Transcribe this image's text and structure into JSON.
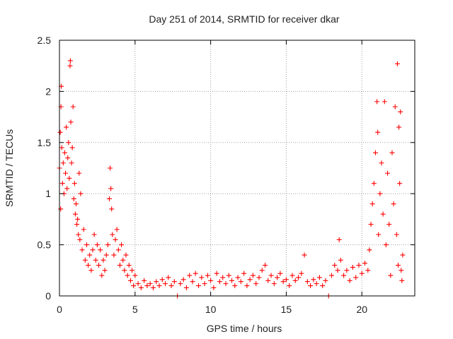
{
  "chart_data": {
    "type": "scatter",
    "title": "Day 251 of 2014, SRMTID for receiver dkar",
    "xlabel": "GPS time / hours",
    "ylabel": "SRMTID / TECUs",
    "xlim": [
      0,
      23.5
    ],
    "ylim": [
      0,
      2.5
    ],
    "x_ticks": [
      0,
      5,
      10,
      15,
      20
    ],
    "x_tick_labels": [
      "0",
      "5",
      "10",
      "15",
      "20"
    ],
    "y_ticks": [
      0,
      0.5,
      1,
      1.5,
      2,
      2.5
    ],
    "y_tick_labels": [
      "0",
      "0.5",
      "1",
      "1.5",
      "2",
      "2.5"
    ],
    "grid": true,
    "marker": "+",
    "series": [
      {
        "name": "SRMTID",
        "color": "#ff0000",
        "points": [
          [
            0.0,
            1.25
          ],
          [
            0.05,
            1.6
          ],
          [
            0.08,
            0.85
          ],
          [
            0.1,
            1.85
          ],
          [
            0.12,
            2.05
          ],
          [
            0.15,
            1.45
          ],
          [
            0.2,
            1.1
          ],
          [
            0.25,
            1.3
          ],
          [
            0.3,
            1.0
          ],
          [
            0.35,
            1.4
          ],
          [
            0.4,
            1.2
          ],
          [
            0.45,
            1.65
          ],
          [
            0.5,
            1.05
          ],
          [
            0.55,
            1.35
          ],
          [
            0.6,
            1.5
          ],
          [
            0.65,
            1.15
          ],
          [
            0.7,
            2.25
          ],
          [
            0.72,
            2.3
          ],
          [
            0.75,
            1.7
          ],
          [
            0.8,
            1.3
          ],
          [
            0.85,
            1.45
          ],
          [
            0.9,
            1.85
          ],
          [
            0.95,
            0.95
          ],
          [
            1.0,
            1.1
          ],
          [
            1.05,
            0.8
          ],
          [
            1.1,
            0.9
          ],
          [
            1.15,
            0.7
          ],
          [
            1.2,
            0.75
          ],
          [
            1.25,
            0.6
          ],
          [
            1.3,
            1.2
          ],
          [
            1.35,
            0.55
          ],
          [
            1.4,
            1.0
          ],
          [
            1.5,
            0.45
          ],
          [
            1.6,
            0.65
          ],
          [
            1.7,
            0.35
          ],
          [
            1.8,
            0.5
          ],
          [
            1.9,
            0.3
          ],
          [
            2.0,
            0.4
          ],
          [
            2.1,
            0.25
          ],
          [
            2.2,
            0.45
          ],
          [
            2.3,
            0.6
          ],
          [
            2.4,
            0.35
          ],
          [
            2.5,
            0.5
          ],
          [
            2.6,
            0.3
          ],
          [
            2.7,
            0.45
          ],
          [
            2.8,
            0.2
          ],
          [
            2.9,
            0.35
          ],
          [
            3.0,
            0.25
          ],
          [
            3.1,
            0.4
          ],
          [
            3.2,
            0.5
          ],
          [
            3.3,
            0.95
          ],
          [
            3.35,
            1.25
          ],
          [
            3.4,
            1.05
          ],
          [
            3.45,
            0.85
          ],
          [
            3.5,
            0.6
          ],
          [
            3.6,
            0.4
          ],
          [
            3.7,
            0.55
          ],
          [
            3.8,
            0.65
          ],
          [
            3.9,
            0.45
          ],
          [
            4.0,
            0.3
          ],
          [
            4.1,
            0.5
          ],
          [
            4.2,
            0.35
          ],
          [
            4.3,
            0.25
          ],
          [
            4.4,
            0.4
          ],
          [
            4.5,
            0.2
          ],
          [
            4.6,
            0.3
          ],
          [
            4.7,
            0.15
          ],
          [
            4.8,
            0.25
          ],
          [
            4.9,
            0.1
          ],
          [
            5.0,
            0.2
          ],
          [
            5.2,
            0.12
          ],
          [
            5.4,
            0.08
          ],
          [
            5.6,
            0.15
          ],
          [
            5.8,
            0.1
          ],
          [
            6.0,
            0.12
          ],
          [
            6.2,
            0.08
          ],
          [
            6.4,
            0.14
          ],
          [
            6.6,
            0.1
          ],
          [
            6.8,
            0.16
          ],
          [
            7.0,
            0.12
          ],
          [
            7.2,
            0.18
          ],
          [
            7.4,
            0.1
          ],
          [
            7.6,
            0.14
          ],
          [
            7.8,
            0.0
          ],
          [
            8.0,
            0.12
          ],
          [
            8.2,
            0.16
          ],
          [
            8.4,
            0.08
          ],
          [
            8.6,
            0.2
          ],
          [
            8.8,
            0.14
          ],
          [
            9.0,
            0.22
          ],
          [
            9.2,
            0.1
          ],
          [
            9.4,
            0.18
          ],
          [
            9.6,
            0.12
          ],
          [
            9.8,
            0.2
          ],
          [
            10.0,
            0.15
          ],
          [
            10.2,
            0.08
          ],
          [
            10.4,
            0.22
          ],
          [
            10.6,
            0.14
          ],
          [
            10.8,
            0.18
          ],
          [
            11.0,
            0.12
          ],
          [
            11.2,
            0.2
          ],
          [
            11.4,
            0.15
          ],
          [
            11.6,
            0.1
          ],
          [
            11.8,
            0.18
          ],
          [
            12.0,
            0.14
          ],
          [
            12.2,
            0.22
          ],
          [
            12.4,
            0.1
          ],
          [
            12.6,
            0.16
          ],
          [
            12.8,
            0.2
          ],
          [
            13.0,
            0.12
          ],
          [
            13.2,
            0.18
          ],
          [
            13.4,
            0.25
          ],
          [
            13.6,
            0.3
          ],
          [
            13.8,
            0.15
          ],
          [
            14.0,
            0.2
          ],
          [
            14.2,
            0.12
          ],
          [
            14.4,
            0.18
          ],
          [
            14.6,
            0.22
          ],
          [
            14.8,
            0.14
          ],
          [
            15.0,
            0.16
          ],
          [
            15.2,
            0.1
          ],
          [
            15.4,
            0.2
          ],
          [
            15.6,
            0.15
          ],
          [
            15.8,
            0.18
          ],
          [
            16.0,
            0.22
          ],
          [
            16.2,
            0.4
          ],
          [
            16.4,
            0.14
          ],
          [
            16.6,
            0.1
          ],
          [
            16.8,
            0.16
          ],
          [
            17.0,
            0.12
          ],
          [
            17.2,
            0.18
          ],
          [
            17.4,
            0.1
          ],
          [
            17.6,
            0.15
          ],
          [
            17.8,
            0.0
          ],
          [
            18.0,
            0.2
          ],
          [
            18.2,
            0.3
          ],
          [
            18.4,
            0.25
          ],
          [
            18.5,
            0.55
          ],
          [
            18.6,
            0.35
          ],
          [
            18.8,
            0.2
          ],
          [
            19.0,
            0.25
          ],
          [
            19.2,
            0.15
          ],
          [
            19.4,
            0.28
          ],
          [
            19.6,
            0.18
          ],
          [
            19.8,
            0.3
          ],
          [
            20.0,
            0.22
          ],
          [
            20.2,
            0.32
          ],
          [
            20.4,
            0.25
          ],
          [
            20.5,
            0.45
          ],
          [
            20.6,
            0.7
          ],
          [
            20.7,
            0.9
          ],
          [
            20.8,
            1.1
          ],
          [
            20.9,
            1.4
          ],
          [
            21.0,
            1.9
          ],
          [
            21.05,
            1.6
          ],
          [
            21.1,
            0.6
          ],
          [
            21.2,
            1.0
          ],
          [
            21.3,
            1.3
          ],
          [
            21.4,
            0.8
          ],
          [
            21.5,
            1.9
          ],
          [
            21.6,
            0.5
          ],
          [
            21.7,
            1.2
          ],
          [
            21.8,
            0.7
          ],
          [
            21.9,
            0.2
          ],
          [
            22.0,
            1.4
          ],
          [
            22.1,
            0.9
          ],
          [
            22.2,
            1.85
          ],
          [
            22.3,
            0.6
          ],
          [
            22.35,
            2.27
          ],
          [
            22.4,
            0.3
          ],
          [
            22.45,
            1.65
          ],
          [
            22.5,
            1.1
          ],
          [
            22.55,
            1.8
          ],
          [
            22.6,
            0.25
          ],
          [
            22.65,
            0.15
          ],
          [
            22.7,
            0.4
          ]
        ]
      }
    ]
  }
}
